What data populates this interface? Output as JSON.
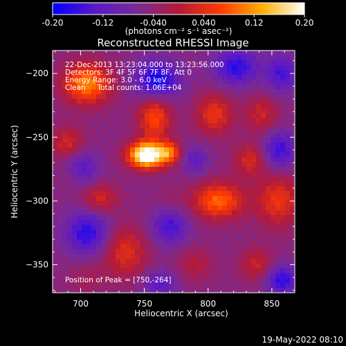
{
  "chart_data": {
    "type": "heatmap",
    "title": "Reconstructed RHESSI Image",
    "xlabel": "Heliocentric X (arcsec)",
    "ylabel": "Heliocentric Y (arcsec)",
    "xlim": [
      678,
      868
    ],
    "ylim": [
      -372,
      -182
    ],
    "x_ticks": [
      700,
      750,
      800,
      850
    ],
    "y_ticks": [
      -200,
      -250,
      -300,
      -350
    ],
    "colorbar": {
      "range": [
        -0.2,
        0.2
      ],
      "tick_values": [
        -0.2,
        -0.12,
        -0.04,
        0.04,
        0.12,
        0.2
      ],
      "tick_labels": [
        "-0.20",
        "-0.12",
        "-0.040",
        "0.040",
        "0.12",
        "0.20"
      ],
      "unit_label": "(photons cm⁻² s⁻¹ asec⁻²)",
      "colormap": [
        "#0000ff",
        "#5a18c8",
        "#7a2a96",
        "#b21a3a",
        "#ff3a00",
        "#ffb000",
        "#ffffff"
      ]
    },
    "annotations": {
      "line1": "22-Dec-2013 13:23:04.000 to 13:23:56.000",
      "line2": "Detectors: 3F 4F 5F 6F 7F 8F, Att 0",
      "line3": "Energy Range: 3.0 - 6.0 keV",
      "line4": "Clean     Total counts: 1.06E+04",
      "peak": "Position of Peak = [750,-264]"
    },
    "peak_position": [
      750,
      -264
    ],
    "sources": [
      {
        "x": 752,
        "y": -264,
        "amp": 0.29,
        "sx": 10,
        "sy": 7
      },
      {
        "x": 770,
        "y": -262,
        "amp": 0.12,
        "sx": 6,
        "sy": 6
      },
      {
        "x": 758,
        "y": -235,
        "amp": 0.12,
        "sx": 9,
        "sy": 12
      },
      {
        "x": 705,
        "y": -208,
        "amp": 0.16,
        "sx": 13,
        "sy": 11
      },
      {
        "x": 690,
        "y": -255,
        "amp": 0.08,
        "sx": 9,
        "sy": 9
      },
      {
        "x": 695,
        "y": -280,
        "amp": 0.04,
        "sx": 8,
        "sy": 8
      },
      {
        "x": 715,
        "y": -298,
        "amp": 0.08,
        "sx": 10,
        "sy": 8
      },
      {
        "x": 735,
        "y": -340,
        "amp": 0.09,
        "sx": 12,
        "sy": 14
      },
      {
        "x": 705,
        "y": -360,
        "amp": 0.03,
        "sx": 10,
        "sy": 10
      },
      {
        "x": 805,
        "y": -232,
        "amp": 0.1,
        "sx": 10,
        "sy": 11
      },
      {
        "x": 842,
        "y": -232,
        "amp": 0.07,
        "sx": 9,
        "sy": 10
      },
      {
        "x": 808,
        "y": -300,
        "amp": 0.14,
        "sx": 14,
        "sy": 10
      },
      {
        "x": 855,
        "y": -300,
        "amp": 0.1,
        "sx": 12,
        "sy": 14
      },
      {
        "x": 833,
        "y": -268,
        "amp": 0.08,
        "sx": 9,
        "sy": 9
      },
      {
        "x": 790,
        "y": -350,
        "amp": 0.05,
        "sx": 10,
        "sy": 9
      },
      {
        "x": 838,
        "y": -350,
        "amp": 0.07,
        "sx": 9,
        "sy": 9
      },
      {
        "x": 770,
        "y": -300,
        "amp": 0.02,
        "sx": 8,
        "sy": 8
      }
    ],
    "negative_regions": [
      {
        "x": 700,
        "y": -275,
        "amp": -0.1,
        "sx": 9,
        "sy": 10
      },
      {
        "x": 705,
        "y": -325,
        "amp": -0.12,
        "sx": 12,
        "sy": 12
      },
      {
        "x": 760,
        "y": -205,
        "amp": -0.14,
        "sx": 12,
        "sy": 10
      },
      {
        "x": 822,
        "y": -195,
        "amp": -0.12,
        "sx": 12,
        "sy": 10
      },
      {
        "x": 858,
        "y": -200,
        "amp": -0.1,
        "sx": 9,
        "sy": 10
      },
      {
        "x": 856,
        "y": -260,
        "amp": -0.11,
        "sx": 9,
        "sy": 10
      },
      {
        "x": 770,
        "y": -320,
        "amp": -0.1,
        "sx": 10,
        "sy": 10
      },
      {
        "x": 790,
        "y": -268,
        "amp": -0.07,
        "sx": 7,
        "sy": 8
      },
      {
        "x": 858,
        "y": -362,
        "amp": -0.12,
        "sx": 9,
        "sy": 8
      },
      {
        "x": 762,
        "y": -365,
        "amp": -0.08,
        "sx": 9,
        "sy": 7
      }
    ],
    "background": -0.05
  },
  "footer": {
    "timestamp": "19-May-2022 08:10"
  }
}
